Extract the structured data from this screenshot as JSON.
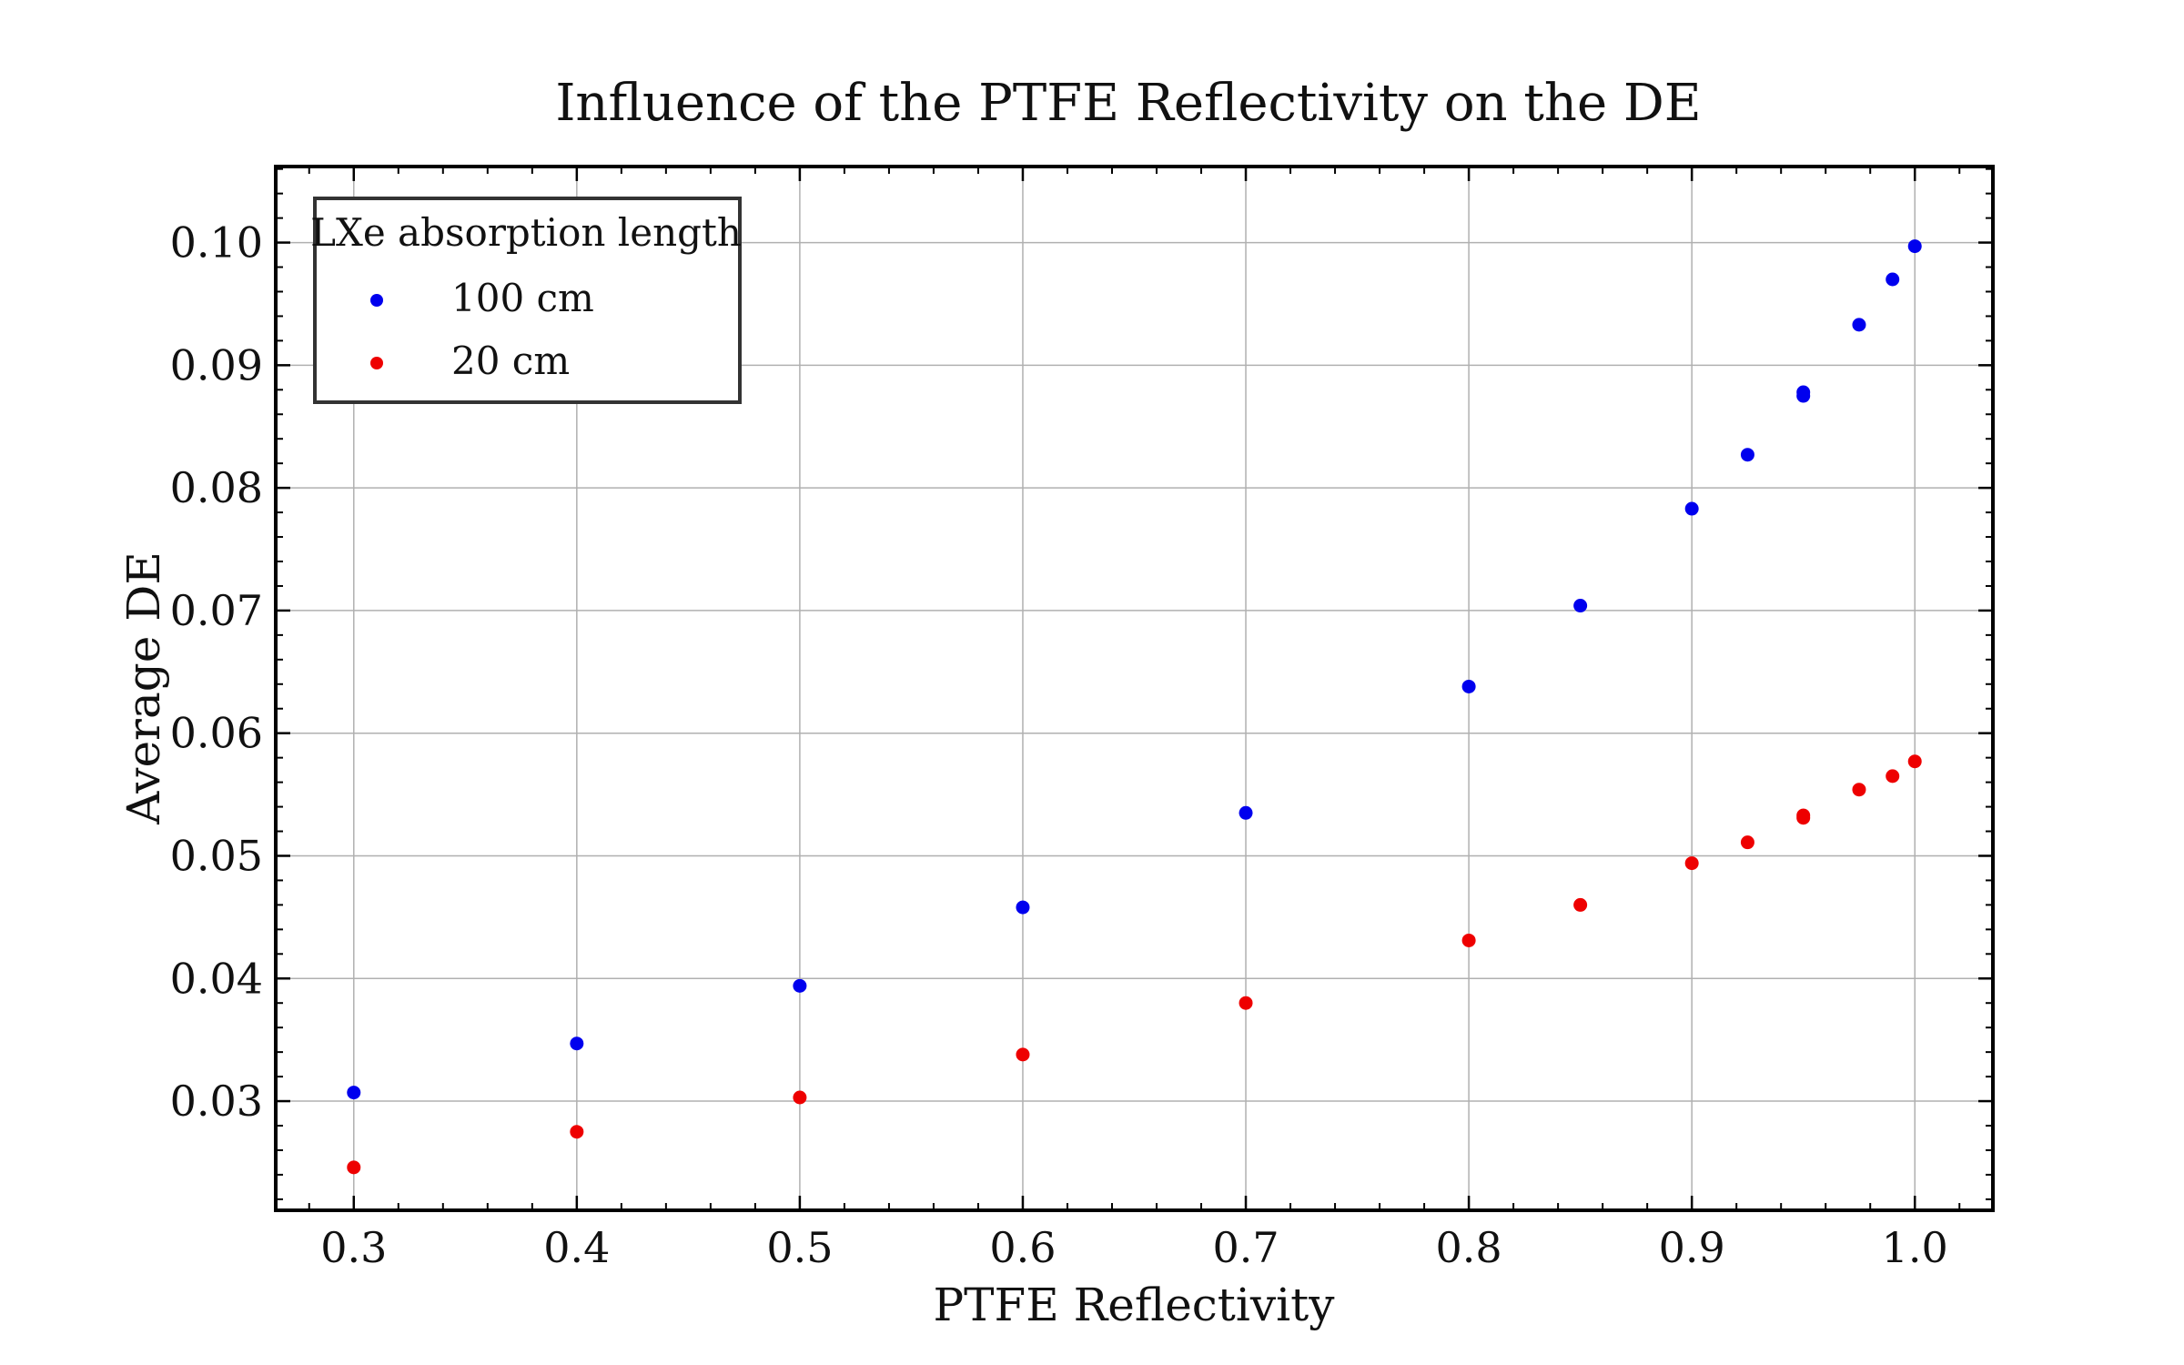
{
  "chart_data": {
    "type": "scatter",
    "title": "Influence of the PTFE Reflectivity on the DE",
    "xlabel": "PTFE Reflectivity",
    "ylabel": "Average DE",
    "xlim": [
      0.265,
      1.035
    ],
    "ylim": [
      0.0211,
      0.1062
    ],
    "x_ticks": [
      0.3,
      0.4,
      0.5,
      0.6,
      0.7,
      0.8,
      0.9,
      1.0
    ],
    "x_tick_labels": [
      "0.3",
      "0.4",
      "0.5",
      "0.6",
      "0.7",
      "0.8",
      "0.9",
      "1.0"
    ],
    "y_ticks": [
      0.03,
      0.04,
      0.05,
      0.06,
      0.07,
      0.08,
      0.09,
      0.1
    ],
    "y_tick_labels": [
      "0.03",
      "0.04",
      "0.05",
      "0.06",
      "0.07",
      "0.08",
      "0.09",
      "0.10"
    ],
    "grid": true,
    "legend": {
      "title": "LXe absorption length",
      "placement": "top-left"
    },
    "series": [
      {
        "name": "100 cm",
        "color": "#0000ee",
        "points": [
          [
            0.3,
            0.0307
          ],
          [
            0.4,
            0.0347
          ],
          [
            0.5,
            0.0394
          ],
          [
            0.6,
            0.0458
          ],
          [
            0.7,
            0.0535
          ],
          [
            0.8,
            0.0638
          ],
          [
            0.85,
            0.0704
          ],
          [
            0.9,
            0.0783
          ],
          [
            0.925,
            0.0827
          ],
          [
            0.95,
            0.0875
          ],
          [
            0.95,
            0.0878
          ],
          [
            0.975,
            0.0933
          ],
          [
            0.99,
            0.097
          ],
          [
            1.0,
            0.0997
          ]
        ]
      },
      {
        "name": "20 cm",
        "color": "#ee0000",
        "points": [
          [
            0.3,
            0.0246
          ],
          [
            0.4,
            0.0275
          ],
          [
            0.5,
            0.0303
          ],
          [
            0.6,
            0.0338
          ],
          [
            0.7,
            0.038
          ],
          [
            0.8,
            0.0431
          ],
          [
            0.85,
            0.046
          ],
          [
            0.9,
            0.0494
          ],
          [
            0.925,
            0.0511
          ],
          [
            0.95,
            0.0531
          ],
          [
            0.95,
            0.0533
          ],
          [
            0.975,
            0.0554
          ],
          [
            0.99,
            0.0565
          ],
          [
            1.0,
            0.0577
          ]
        ]
      }
    ]
  }
}
